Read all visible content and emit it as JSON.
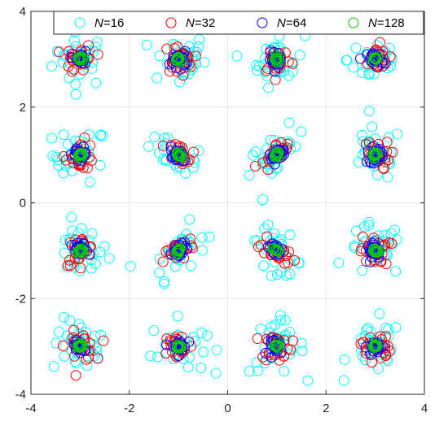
{
  "chart_data": {
    "type": "scatter",
    "title": "",
    "xlabel": "",
    "ylabel": "",
    "xlim": [
      -4,
      4
    ],
    "ylim": [
      -4,
      4
    ],
    "xticks": [
      -4,
      -2,
      0,
      2,
      4
    ],
    "yticks": [
      -4,
      -2,
      0,
      2,
      4
    ],
    "x_tick_labels": [
      "-4",
      "-2",
      "0",
      "2",
      "4"
    ],
    "y_tick_labels": [
      "-4",
      "-2",
      "0",
      "2",
      "4"
    ],
    "grid": true,
    "legend_position": "top",
    "constellation_centers_x": [
      -3,
      -1,
      1,
      3
    ],
    "constellation_centers_y": [
      3,
      1,
      -1,
      -3
    ],
    "series": [
      {
        "name_prefix": "N",
        "name_value": "=16",
        "color": "#00ffff",
        "marker": "open-circle",
        "spread": 0.28
      },
      {
        "name_prefix": "N",
        "name_value": "=32",
        "color": "#ff0000",
        "marker": "open-circle",
        "spread": 0.15
      },
      {
        "name_prefix": "N",
        "name_value": "=64",
        "color": "#0000ff",
        "marker": "open-circle",
        "spread": 0.08
      },
      {
        "name_prefix": "N",
        "name_value": "=128",
        "color": "#00cc00",
        "marker": "open-circle",
        "spread": 0.03
      }
    ]
  }
}
